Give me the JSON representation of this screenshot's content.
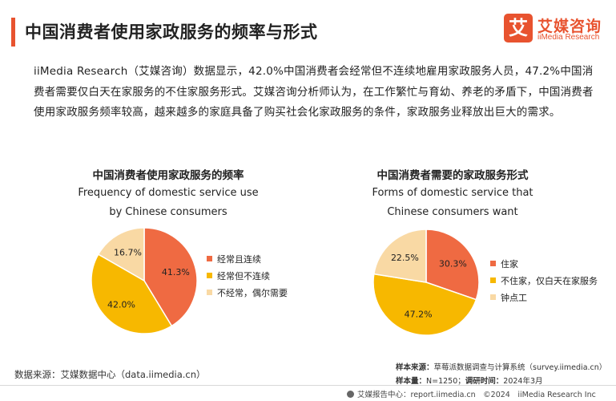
{
  "header": {
    "title": "中国消费者使用家政服务的频率与形式",
    "logo_mark": "艾",
    "logo_cn": "艾媒咨询",
    "logo_en": "iiMedia Research"
  },
  "intro": "iiMedia Research（艾媒咨询）数据显示，42.0%中国消费者会经常但不连续地雇用家政服务人员，47.2%中国消费者需要仅白天在家服务的不住家服务形式。艾媒咨询分析师认为，在工作繁忙与育幼、养老的矛盾下，中国消费者使用家政服务频率较高，越来越多的家庭具备了购买社会化家政服务的条件，家政服务业释放出巨大的需求。",
  "colors": {
    "accent": "#e8532f",
    "orange_red": "#ef6a42",
    "yellow": "#f7b800",
    "beige": "#f9d9a4"
  },
  "chart_data": [
    {
      "type": "pie",
      "title": "中国消费者使用家政服务的频率",
      "subtitle_line1": "Frequency of domestic service use",
      "subtitle_line2": "by Chinese consumers",
      "legend_position": "right",
      "slices": [
        {
          "label": "经常且连续",
          "value": 41.3,
          "value_label": "41.3%",
          "color": "#ef6a42"
        },
        {
          "label": "经常但不连续",
          "value": 42.0,
          "value_label": "42.0%",
          "color": "#f7b800"
        },
        {
          "label": "不经常，偶尔需要",
          "value": 16.7,
          "value_label": "16.7%",
          "color": "#f9d9a4"
        }
      ]
    },
    {
      "type": "pie",
      "title": "中国消费者需要的家政服务形式",
      "subtitle_line1": "Forms of domestic service that",
      "subtitle_line2": "Chinese consumers want",
      "legend_position": "right",
      "slices": [
        {
          "label": "住家",
          "value": 30.3,
          "value_label": "30.3%",
          "color": "#ef6a42"
        },
        {
          "label": "不住家，仅白天在家服务",
          "value": 47.2,
          "value_label": "47.2%",
          "color": "#f7b800"
        },
        {
          "label": "钟点工",
          "value": 22.5,
          "value_label": "22.5%",
          "color": "#f9d9a4"
        }
      ]
    }
  ],
  "source": {
    "left": "数据来源：艾媒数据中心（data.iimedia.cn）",
    "sample_source_label": "样本来源：",
    "sample_source": "草莓派数据调查与计算系统（survey.iimedia.cn）",
    "sample_size_label": "样本量：",
    "sample_size": "N=1250；",
    "survey_time_label": "调研时间：",
    "survey_time": "2024年3月"
  },
  "footer": {
    "text": "艾媒报告中心：report.iimedia.cn　©2024　iiMedia Research  Inc"
  }
}
